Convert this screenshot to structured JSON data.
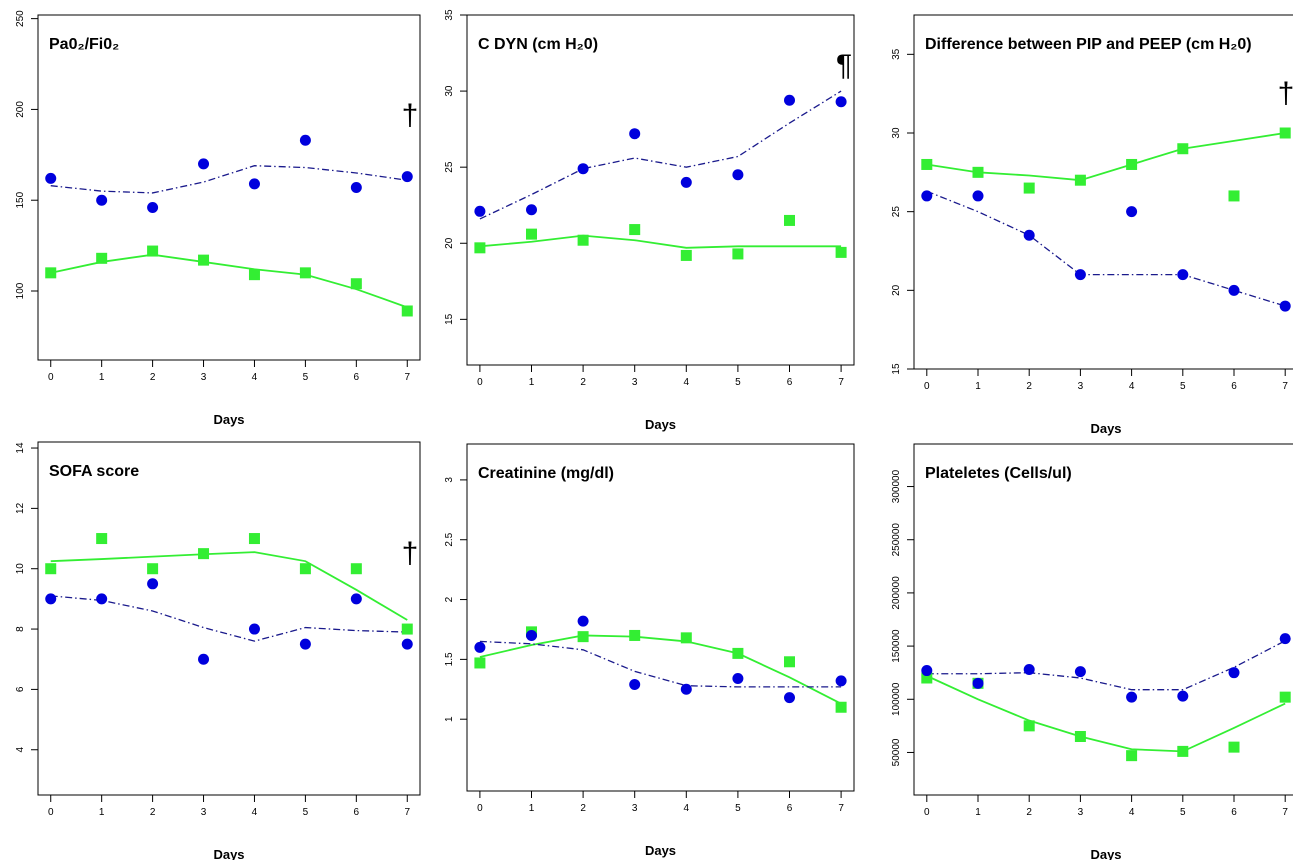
{
  "figure": {
    "x_axis_label": "Days",
    "colors": {
      "series_a": "#33ee33",
      "series_b": "#0000dd",
      "series_b_line": "#1a1a8c",
      "frame": "#000000"
    }
  },
  "chart_data": [
    {
      "type": "scatter",
      "title": "Pa0₂/Fi0₂",
      "annotation": "†",
      "xlabel": "Days",
      "x": [
        0,
        1,
        2,
        3,
        4,
        5,
        6,
        7
      ],
      "xlim": [
        -0.25,
        7.25
      ],
      "ylim": [
        62,
        252
      ],
      "yticks": [
        100,
        150,
        200,
        250
      ],
      "grid": false,
      "series": [
        {
          "marker": "square",
          "color": "#33ee33",
          "points": [
            110,
            118,
            122,
            117,
            109,
            110,
            104,
            89
          ],
          "trend": [
            110,
            116,
            120,
            116,
            112,
            109,
            101,
            91
          ]
        },
        {
          "marker": "circle",
          "color": "#0000dd",
          "points": [
            162,
            150,
            146,
            170,
            159,
            183,
            157,
            163
          ],
          "trend": [
            158,
            155,
            154,
            160,
            169,
            168,
            165,
            161
          ]
        }
      ]
    },
    {
      "type": "scatter",
      "title": "C DYN (cm H₂0)",
      "annotation": "¶",
      "xlabel": "Days",
      "x": [
        0,
        1,
        2,
        3,
        4,
        5,
        6,
        7
      ],
      "xlim": [
        -0.25,
        7.25
      ],
      "ylim": [
        12,
        35
      ],
      "yticks": [
        15,
        20,
        25,
        30,
        35
      ],
      "grid": false,
      "series": [
        {
          "marker": "square",
          "color": "#33ee33",
          "points": [
            19.7,
            20.6,
            20.2,
            20.9,
            19.2,
            19.3,
            21.5,
            19.4
          ],
          "trend": [
            19.8,
            20.1,
            20.5,
            20.2,
            19.7,
            19.8,
            19.8,
            19.8
          ]
        },
        {
          "marker": "circle",
          "color": "#0000dd",
          "points": [
            22.1,
            22.2,
            24.9,
            27.2,
            24.0,
            24.5,
            29.4,
            29.3
          ],
          "trend": [
            21.6,
            23.2,
            24.9,
            25.6,
            25.0,
            25.7,
            27.9,
            30.0
          ]
        }
      ]
    },
    {
      "type": "scatter",
      "title": "Difference between PIP and PEEP (cm H₂0)",
      "annotation": "†",
      "xlabel": "Days",
      "x": [
        0,
        1,
        2,
        3,
        4,
        5,
        6,
        7
      ],
      "xlim": [
        -0.25,
        7.25
      ],
      "ylim": [
        15,
        37.5
      ],
      "yticks": [
        15,
        20,
        25,
        30,
        35
      ],
      "grid": false,
      "series": [
        {
          "marker": "square",
          "color": "#33ee33",
          "points": [
            28,
            27.5,
            26.5,
            27,
            28,
            29,
            26,
            30
          ],
          "trend": [
            28,
            27.5,
            27.3,
            27,
            28,
            29,
            29.5,
            30
          ]
        },
        {
          "marker": "circle",
          "color": "#0000dd",
          "points": [
            26,
            26,
            23.5,
            21,
            25,
            21,
            20,
            19
          ],
          "trend": [
            26.3,
            25,
            23.5,
            21,
            21,
            21,
            20,
            19
          ]
        }
      ]
    },
    {
      "type": "scatter",
      "title": "SOFA score",
      "annotation": "†",
      "xlabel": "Days",
      "x": [
        0,
        1,
        2,
        3,
        4,
        5,
        6,
        7
      ],
      "xlim": [
        -0.25,
        7.25
      ],
      "ylim": [
        2.5,
        14.2
      ],
      "yticks": [
        4,
        6,
        8,
        10,
        12,
        14
      ],
      "grid": false,
      "series": [
        {
          "marker": "square",
          "color": "#33ee33",
          "points": [
            10,
            11,
            10,
            10.5,
            11,
            10,
            10,
            8
          ],
          "trend": [
            10.25,
            10.32,
            10.4,
            10.48,
            10.55,
            10.25,
            9.3,
            8.3
          ]
        },
        {
          "marker": "circle",
          "color": "#0000dd",
          "points": [
            9,
            9,
            9.5,
            7,
            8,
            7.5,
            9,
            7.5
          ],
          "trend": [
            9.1,
            8.95,
            8.6,
            8.05,
            7.6,
            8.05,
            7.95,
            7.9
          ]
        }
      ]
    },
    {
      "type": "scatter",
      "title": "Creatinine (mg/dl)",
      "annotation": "",
      "xlabel": "Days",
      "x": [
        0,
        1,
        2,
        3,
        4,
        5,
        6,
        7
      ],
      "xlim": [
        -0.25,
        7.25
      ],
      "ylim": [
        0.4,
        3.3
      ],
      "yticks": [
        1.0,
        1.5,
        2.0,
        2.5,
        3.0
      ],
      "grid": false,
      "series": [
        {
          "marker": "square",
          "color": "#33ee33",
          "points": [
            1.47,
            1.73,
            1.69,
            1.7,
            1.68,
            1.55,
            1.48,
            1.1
          ],
          "trend": [
            1.52,
            1.62,
            1.7,
            1.69,
            1.65,
            1.55,
            1.35,
            1.13
          ]
        },
        {
          "marker": "circle",
          "color": "#0000dd",
          "points": [
            1.6,
            1.7,
            1.82,
            1.29,
            1.25,
            1.34,
            1.18,
            1.32
          ],
          "trend": [
            1.65,
            1.63,
            1.58,
            1.4,
            1.28,
            1.27,
            1.27,
            1.27
          ]
        }
      ]
    },
    {
      "type": "scatter",
      "title": "Plateletes (Cells/ul)",
      "annotation": "",
      "xlabel": "Days",
      "x": [
        0,
        1,
        2,
        3,
        4,
        5,
        6,
        7
      ],
      "xlim": [
        -0.25,
        7.25
      ],
      "ylim": [
        10000,
        340000
      ],
      "yticks": [
        50000,
        100000,
        150000,
        200000,
        250000,
        300000
      ],
      "grid": false,
      "series": [
        {
          "marker": "square",
          "color": "#33ee33",
          "points": [
            120000,
            115000,
            75000,
            65000,
            47000,
            51000,
            55000,
            102000
          ],
          "trend": [
            122000,
            100000,
            80000,
            65000,
            53000,
            51000,
            73000,
            96000
          ]
        },
        {
          "marker": "circle",
          "color": "#0000dd",
          "points": [
            127000,
            115000,
            128000,
            126000,
            102000,
            103000,
            125000,
            157000
          ],
          "trend": [
            124000,
            124000,
            125000,
            120000,
            109000,
            109000,
            130000,
            155000
          ]
        }
      ]
    }
  ]
}
